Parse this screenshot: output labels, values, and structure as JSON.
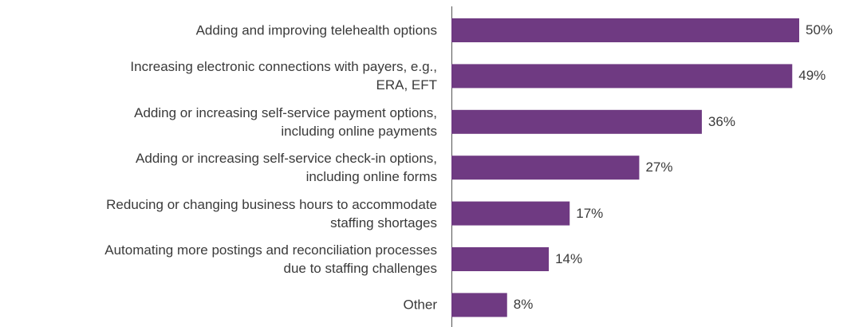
{
  "chart_data": {
    "type": "bar",
    "orientation": "horizontal",
    "categories": [
      "Adding and improving telehealth options",
      "Increasing electronic connections with payers, e.g.,\nERA, EFT",
      "Adding or increasing self-service payment options,\nincluding  online payments",
      "Adding or increasing self-service check-in options,\nincluding online forms",
      "Reducing or changing business hours to accommodate\nstaffing shortages",
      "Automating more postings and reconciliation processes\ndue to staffing challenges",
      "Other"
    ],
    "values": [
      50,
      49,
      36,
      27,
      17,
      14,
      8
    ],
    "value_labels": [
      "50%",
      "49%",
      "36%",
      "27%",
      "17%",
      "14%",
      "8%"
    ],
    "color": "#6f3a82",
    "xlim": [
      0,
      50
    ]
  }
}
